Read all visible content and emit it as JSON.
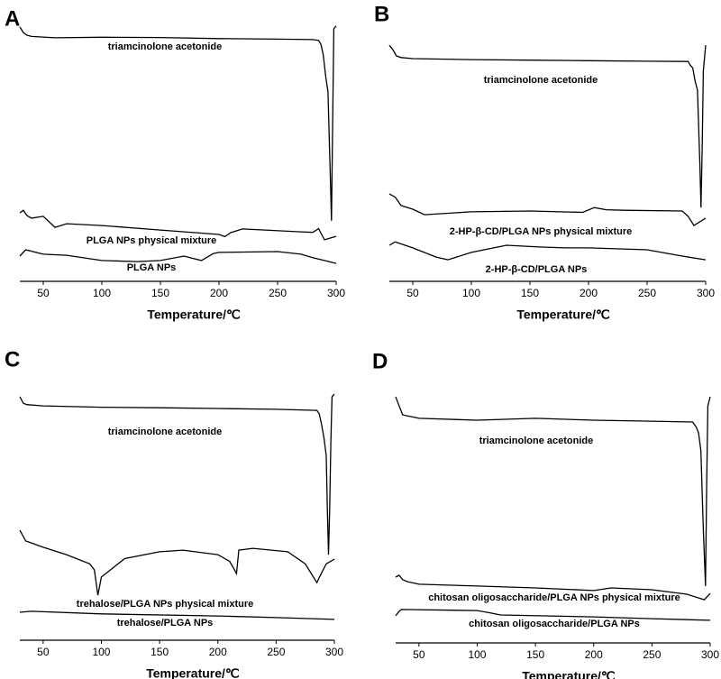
{
  "chart_data": [
    {
      "type": "line",
      "panel_label": "A",
      "xlabel": "Temperature/℃",
      "xlim": [
        30,
        300
      ],
      "xticks": [
        50,
        100,
        150,
        200,
        250,
        300
      ],
      "ylim": [
        0,
        100
      ],
      "series": [
        {
          "name": "triamcinolone acetonide",
          "color": "#000000",
          "x": [
            30,
            33,
            36,
            40,
            60,
            100,
            150,
            200,
            250,
            280,
            285,
            287,
            289,
            291,
            293,
            295,
            296,
            297,
            298,
            300
          ],
          "values": [
            96.6,
            94.5,
            93.5,
            93,
            92.5,
            92.7,
            92.6,
            92.2,
            92,
            91.8,
            91.5,
            90,
            86,
            78,
            72,
            40,
            23,
            60,
            96,
            97
          ]
        },
        {
          "name": "PLGA NPs physical mixture",
          "color": "#000000",
          "x": [
            30,
            33,
            36,
            40,
            50,
            60,
            70,
            100,
            150,
            200,
            205,
            210,
            220,
            270,
            280,
            285,
            290,
            300
          ],
          "values": [
            26,
            27,
            25,
            24,
            24.7,
            20.5,
            21.9,
            21.2,
            19.5,
            17.8,
            17,
            18.5,
            19.9,
            18.8,
            18.6,
            20,
            15.8,
            17.1
          ]
        },
        {
          "name": "PLGA NPs",
          "color": "#000000",
          "x": [
            30,
            35,
            50,
            70,
            100,
            130,
            150,
            170,
            185,
            195,
            200,
            250,
            270,
            280,
            290,
            300
          ],
          "values": [
            9.6,
            12,
            10.3,
            9.9,
            7.9,
            7.5,
            7.9,
            9.6,
            7.9,
            10.5,
            11,
            11.3,
            10.3,
            9,
            7.9,
            6.8
          ]
        }
      ]
    },
    {
      "type": "line",
      "panel_label": "B",
      "xlabel": "Temperature/℃",
      "xlim": [
        30,
        300
      ],
      "xticks": [
        50,
        100,
        150,
        200,
        250,
        300
      ],
      "ylim": [
        0,
        100
      ],
      "series": [
        {
          "name": "triamcinolone acetonide",
          "color": "#000000",
          "x": [
            30,
            33,
            36,
            40,
            50,
            100,
            150,
            200,
            250,
            285,
            287,
            289,
            291,
            293,
            295,
            296,
            297,
            298,
            300
          ],
          "values": [
            89.7,
            88,
            85.6,
            85,
            84.6,
            84.2,
            84,
            83.8,
            83.6,
            83.5,
            82,
            81,
            76,
            72.6,
            45,
            28,
            50,
            80,
            89.7
          ]
        },
        {
          "name": "2-HP-β-CD/PLGA NPs physical mixture",
          "color": "#000000",
          "x": [
            30,
            35,
            40,
            50,
            60,
            100,
            150,
            195,
            205,
            215,
            230,
            280,
            285,
            290,
            295,
            300
          ],
          "values": [
            33.2,
            32,
            28.8,
            27.4,
            25.3,
            26.4,
            26.7,
            26.2,
            28,
            27.2,
            27,
            26.7,
            24.7,
            21.2,
            22.6,
            24
          ]
        },
        {
          "name": "2-HP-β-CD/PLGA NPs",
          "color": "#000000",
          "x": [
            30,
            35,
            50,
            70,
            80,
            100,
            130,
            160,
            180,
            200,
            250,
            280,
            300
          ],
          "values": [
            13.7,
            15,
            12.7,
            9.2,
            8.2,
            11,
            13.7,
            13,
            12.7,
            12.7,
            12,
            9.6,
            8.2
          ]
        }
      ]
    },
    {
      "type": "line",
      "panel_label": "C",
      "xlabel": "Temperature/℃",
      "xlim": [
        30,
        300
      ],
      "xticks": [
        50,
        100,
        150,
        200,
        250,
        300
      ],
      "ylim": [
        0,
        100
      ],
      "series": [
        {
          "name": "triamcinolone acetonide",
          "color": "#000000",
          "x": [
            30,
            33,
            36,
            50,
            100,
            150,
            200,
            250,
            285,
            287,
            289,
            291,
            293,
            294,
            295,
            296,
            297,
            298,
            300
          ],
          "values": [
            92.5,
            90,
            89.5,
            89,
            88.5,
            88.3,
            88,
            87.7,
            87.3,
            86,
            82,
            77,
            70,
            50,
            32.5,
            50,
            75,
            92.5,
            93.5
          ]
        },
        {
          "name": "trehalose/PLGA NPs physical mixture",
          "color": "#000000",
          "x": [
            30,
            35,
            50,
            70,
            90,
            94,
            97,
            100,
            120,
            150,
            170,
            200,
            210,
            214,
            216,
            218,
            230,
            260,
            275,
            282,
            285,
            288,
            293,
            300
          ],
          "values": [
            41.8,
            37.7,
            35.3,
            32.5,
            29,
            26.7,
            17.1,
            24,
            31,
            33.6,
            34.2,
            32.5,
            30,
            27,
            25.3,
            34.2,
            34.9,
            33.6,
            29,
            24,
            21.9,
            24.7,
            29,
            30.8
          ]
        },
        {
          "name": "trehalose/PLGA NPs",
          "color": "#000000",
          "x": [
            30,
            40,
            100,
            200,
            250,
            300
          ],
          "values": [
            10.6,
            11,
            10,
            9.2,
            8.6,
            7.9
          ]
        }
      ]
    },
    {
      "type": "line",
      "panel_label": "D",
      "xlabel": "Temperature/℃",
      "xlim": [
        30,
        300
      ],
      "xticks": [
        50,
        100,
        150,
        200,
        250,
        300
      ],
      "ylim": [
        0,
        100
      ],
      "series": [
        {
          "name": "triamcinolone acetonide",
          "color": "#000000",
          "x": [
            30,
            33,
            36,
            50,
            100,
            150,
            200,
            250,
            285,
            288,
            290,
            292,
            294,
            296,
            297,
            298,
            300
          ],
          "values": [
            93.5,
            90,
            86.6,
            85.3,
            84.6,
            85.3,
            84.6,
            84.2,
            83.9,
            82,
            79.8,
            72.9,
            45,
            21.6,
            60,
            90,
            93.5
          ]
        },
        {
          "name": "chitosan oligosaccharide/PLGA NPs physical mixture",
          "color": "#000000",
          "x": [
            30,
            33,
            36,
            40,
            50,
            100,
            150,
            200,
            215,
            250,
            280,
            295,
            300
          ],
          "values": [
            25,
            25.7,
            24,
            23.3,
            22.3,
            21.6,
            20.9,
            19.9,
            20.9,
            20.2,
            18.5,
            16.4,
            18.8
          ]
        },
        {
          "name": "chitosan oligosaccharide/PLGA NPs",
          "color": "#000000",
          "x": [
            30,
            33,
            35,
            100,
            110,
            120,
            200,
            250,
            300
          ],
          "values": [
            10.3,
            12,
            12.7,
            12.3,
            11.5,
            10.6,
            9.9,
            9.2,
            8.6
          ]
        }
      ]
    }
  ]
}
